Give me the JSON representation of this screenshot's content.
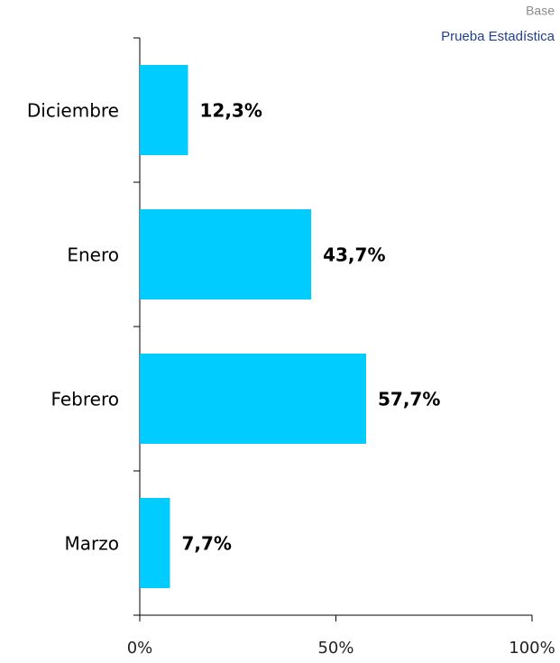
{
  "chart_data": {
    "type": "hbar",
    "annotations": [
      "Base",
      "Prueba Estadística"
    ],
    "categories": [
      "Diciembre",
      "Enero",
      "Febrero",
      "Marzo"
    ],
    "values": [
      12.3,
      43.7,
      57.7,
      7.7
    ],
    "value_labels": [
      "12,3%",
      "43,7%",
      "57,7%",
      "7,7%"
    ],
    "color": "#00ccff",
    "xlim": [
      0,
      100
    ],
    "xticks": [
      {
        "value": 0,
        "label": "0%"
      },
      {
        "value": 50,
        "label": "50%"
      },
      {
        "value": 100,
        "label": "100%"
      }
    ]
  }
}
